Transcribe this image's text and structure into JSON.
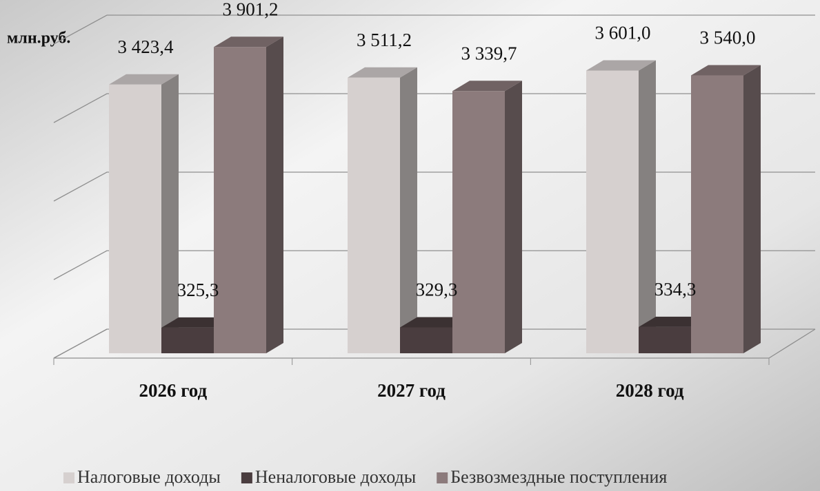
{
  "chart_data": {
    "type": "bar3d",
    "y_label": "млн.руб.",
    "categories": [
      "2026 год",
      "2027 год",
      "2028 год"
    ],
    "series": [
      {
        "name": "Налоговые доходы",
        "color": "#d6d0cf",
        "values": [
          3423.4,
          3511.2,
          3601.0
        ],
        "value_labels": [
          "3 423,4",
          "3 511,2",
          "3 601,0"
        ]
      },
      {
        "name": "Неналоговые доходы",
        "color": "#4a3d3f",
        "values": [
          325.3,
          329.3,
          334.3
        ],
        "value_labels": [
          "325,3",
          "329,3",
          "334,3"
        ]
      },
      {
        "name": "Безвозмездные поступления",
        "color": "#8c7b7c",
        "values": [
          3901.2,
          3339.7,
          3540.0
        ],
        "value_labels": [
          "3 901,2",
          "3 339,7",
          "3 540,0"
        ]
      }
    ],
    "ylim": [
      0,
      4000
    ],
    "yticks": [
      0,
      1000,
      2000,
      3000,
      4000
    ],
    "grid": true
  }
}
